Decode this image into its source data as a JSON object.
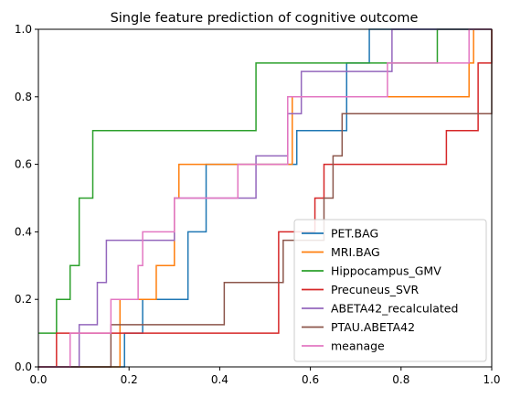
{
  "chart_data": {
    "type": "line",
    "title": "Single feature prediction of cognitive outcome",
    "xlabel": "",
    "ylabel": "",
    "xlim": [
      0,
      1
    ],
    "ylim": [
      0,
      1
    ],
    "x_ticks": [
      "0.0",
      "0.2",
      "0.4",
      "0.6",
      "0.8",
      "1.0"
    ],
    "y_ticks": [
      "0.0",
      "0.2",
      "0.4",
      "0.6",
      "0.8",
      "1.0"
    ],
    "grid": false,
    "legend_position": "lower right",
    "drawstyle": "steps-post",
    "series": [
      {
        "name": "PET.BAG",
        "color": "#1f77b4",
        "x": [
          0,
          0.16,
          0.19,
          0.23,
          0.33,
          0.37,
          0.57,
          0.68,
          0.73,
          1
        ],
        "y": [
          0,
          0,
          0.1,
          0.2,
          0.4,
          0.6,
          0.7,
          0.9,
          1,
          1
        ]
      },
      {
        "name": "MRI.BAG",
        "color": "#ff7f0e",
        "x": [
          0,
          0.16,
          0.18,
          0.26,
          0.3,
          0.31,
          0.39,
          0.56,
          0.95,
          0.96,
          1
        ],
        "y": [
          0,
          0,
          0.2,
          0.3,
          0.5,
          0.6,
          0.6,
          0.8,
          0.9,
          1,
          1
        ]
      },
      {
        "name": "Hippocampus_GMV",
        "color": "#2ca02c",
        "x": [
          0,
          0.04,
          0.07,
          0.09,
          0.12,
          0.48,
          0.88,
          1
        ],
        "y": [
          0.1,
          0.2,
          0.3,
          0.5,
          0.7,
          0.9,
          1,
          1
        ]
      },
      {
        "name": "Precuneus_SVR",
        "color": "#d62728",
        "x": [
          0,
          0.04,
          0.16,
          0.53,
          0.61,
          0.63,
          0.9,
          0.97,
          1
        ],
        "y": [
          0,
          0.1,
          0.1,
          0.4,
          0.5,
          0.6,
          0.7,
          0.9,
          1
        ]
      },
      {
        "name": "ABETA42_recalculated",
        "color": "#9467bd",
        "x": [
          0,
          0.09,
          0.13,
          0.15,
          0.19,
          0.3,
          0.48,
          0.55,
          0.58,
          0.59,
          0.78,
          0.79,
          1
        ],
        "y": [
          0,
          0.125,
          0.25,
          0.375,
          0.375,
          0.5,
          0.625,
          0.75,
          0.875,
          0.875,
          1,
          1,
          1
        ]
      },
      {
        "name": "PTAU.ABETA42",
        "color": "#8c564b",
        "x": [
          0,
          0.16,
          0.41,
          0.54,
          0.63,
          0.65,
          0.67,
          1
        ],
        "y": [
          0,
          0.125,
          0.25,
          0.375,
          0.5,
          0.625,
          0.75,
          1
        ]
      },
      {
        "name": "meanage",
        "color": "#e377c2",
        "x": [
          0,
          0.07,
          0.16,
          0.21,
          0.22,
          0.23,
          0.3,
          0.44,
          0.55,
          0.77,
          0.95,
          0.96,
          1
        ],
        "y": [
          0,
          0.1,
          0.2,
          0.2,
          0.3,
          0.4,
          0.5,
          0.6,
          0.8,
          0.9,
          1,
          1,
          1
        ]
      }
    ]
  }
}
